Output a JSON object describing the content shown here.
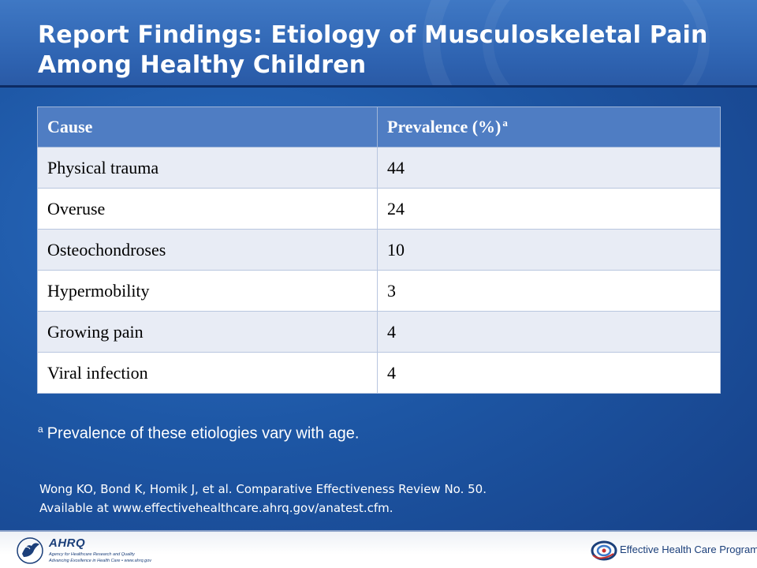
{
  "slide": {
    "title": "Report Findings: Etiology of Musculoskeletal Pain Among Healthy Children"
  },
  "table": {
    "headers": [
      "Cause",
      "Prevalence (%)"
    ],
    "header_superscript": "a",
    "rows": [
      {
        "cause": "Physical trauma",
        "prevalence": "44"
      },
      {
        "cause": "Overuse",
        "prevalence": "24"
      },
      {
        "cause": "Osteochondroses",
        "prevalence": "10"
      },
      {
        "cause": "Hypermobility",
        "prevalence": "3"
      },
      {
        "cause": "Growing pain",
        "prevalence": "4"
      },
      {
        "cause": "Viral infection",
        "prevalence": "4"
      }
    ]
  },
  "footnote": {
    "marker": "a",
    "text": "Prevalence of these etiologies vary with age."
  },
  "citation": {
    "line1": "Wong KO, Bond K, Homik J, et al. Comparative Effectiveness  Review No. 50.",
    "line2": "Available at www.effectivehealthcare.ahrq.gov/anatest.cfm."
  },
  "footer": {
    "ahrq_name": "AHRQ",
    "ahrq_full": "Agency for Healthcare Research and Quality",
    "ahrq_tagline": "Advancing Excellence in Health Care • www.ahrq.gov",
    "ehc_label": "Effective Health Care Program"
  },
  "colors": {
    "background": "#1d56a4",
    "title_band": "#2e63b1",
    "table_header": "#4f7dc3",
    "table_row_alt": "#e8ecf5",
    "text_light": "#ffffff"
  },
  "icons": [
    "hhs-eagle-icon",
    "ehc-program-icon"
  ]
}
